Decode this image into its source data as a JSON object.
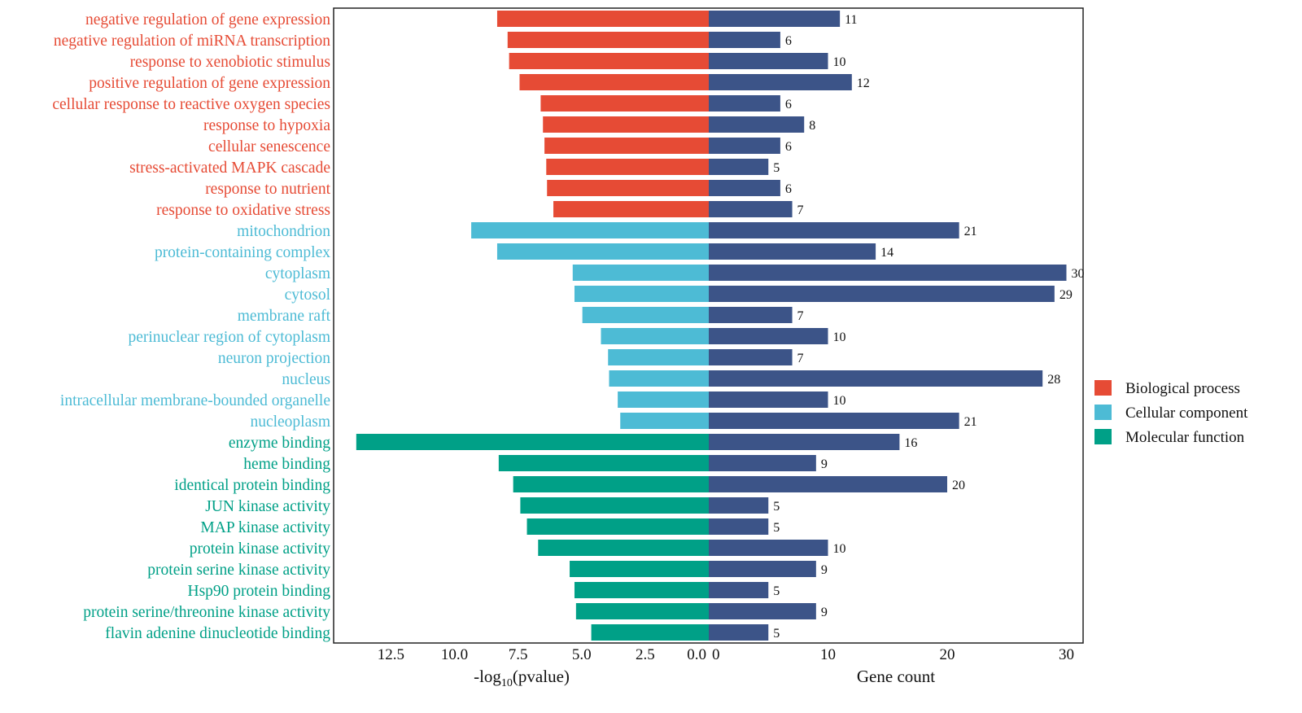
{
  "chart_data": {
    "type": "bar",
    "orientation": "horizontal-diverging",
    "left_panel": {
      "xlabel_main": "-log",
      "xlabel_sub": "10",
      "xlabel_tail": "(pvalue)",
      "xlim": [
        0,
        14.75
      ],
      "reversed": true,
      "ticks": [
        12.5,
        10.0,
        7.5,
        5.0,
        2.5,
        0.0
      ],
      "tick_labels": [
        "12.5",
        "10.0",
        "7.5",
        "5.0",
        "2.5",
        "0.0"
      ]
    },
    "right_panel": {
      "xlabel": "Gene count",
      "xlim": [
        0,
        31.4
      ],
      "ticks": [
        0,
        10,
        20,
        30
      ],
      "tick_labels": [
        "0",
        "10",
        "20",
        "30"
      ],
      "bar_color": "#3C5488"
    },
    "categories": [
      "negative regulation of gene expression",
      "negative regulation of miRNA transcription",
      "response to xenobiotic stimulus",
      "positive regulation of gene expression",
      "cellular response to reactive oxygen species",
      "response to hypoxia",
      "cellular senescence",
      "stress-activated MAPK cascade",
      "response to nutrient",
      "response to oxidative stress",
      "mitochondrion",
      "protein-containing complex",
      "cytoplasm",
      "cytosol",
      "membrane raft",
      "perinuclear region of cytoplasm",
      "neuron projection",
      "nucleus",
      "intracellular membrane-bounded organelle",
      "nucleoplasm",
      "enzyme binding",
      "heme binding",
      "identical protein binding",
      "JUN kinase activity",
      "MAP kinase activity",
      "protein kinase activity",
      "protein serine kinase activity",
      "Hsp90 protein binding",
      "protein serine/threonine kinase activity",
      "flavin adenine dinucleotide binding"
    ],
    "groups": [
      0,
      0,
      0,
      0,
      0,
      0,
      0,
      0,
      0,
      0,
      1,
      1,
      1,
      1,
      1,
      1,
      1,
      1,
      1,
      1,
      2,
      2,
      2,
      2,
      2,
      2,
      2,
      2,
      2,
      2
    ],
    "series": [
      {
        "name": "-log10(pvalue)",
        "values": [
          8.32,
          7.91,
          7.85,
          7.44,
          6.61,
          6.52,
          6.46,
          6.39,
          6.36,
          6.11,
          9.34,
          8.32,
          5.35,
          5.28,
          4.97,
          4.24,
          3.96,
          3.92,
          3.58,
          3.48,
          13.86,
          8.26,
          7.69,
          7.41,
          7.15,
          6.71,
          5.47,
          5.28,
          5.22,
          4.62
        ]
      },
      {
        "name": "Gene count",
        "values": [
          11,
          6,
          10,
          12,
          6,
          8,
          6,
          5,
          6,
          7,
          21,
          14,
          30,
          29,
          7,
          10,
          7,
          28,
          10,
          21,
          16,
          9,
          20,
          5,
          5,
          10,
          9,
          5,
          9,
          5
        ]
      }
    ],
    "legend": {
      "placement": "right",
      "entries": [
        {
          "label": "Biological process",
          "color": "#E64B35"
        },
        {
          "label": "Cellular component",
          "color": "#4DBBD5"
        },
        {
          "label": "Molecular function",
          "color": "#00A087"
        }
      ]
    },
    "grid": false
  }
}
